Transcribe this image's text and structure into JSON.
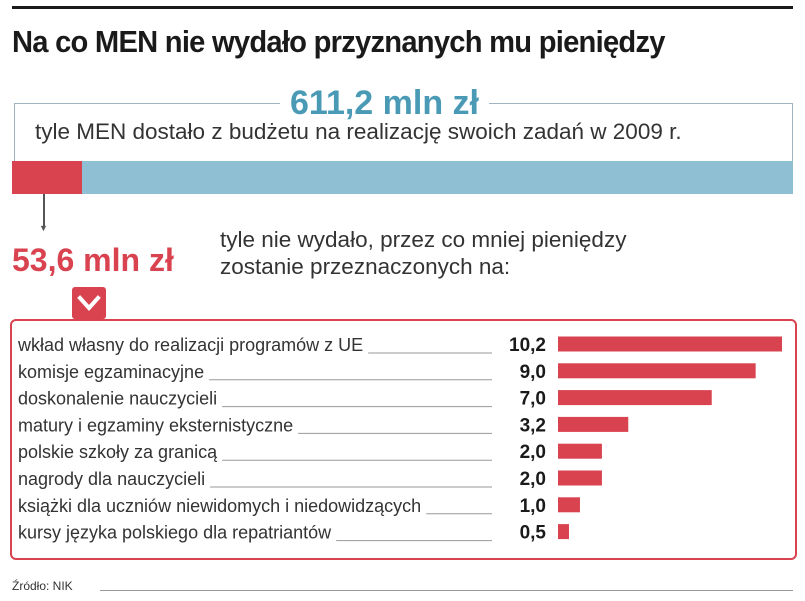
{
  "title": "Na co MEN nie wydało przyznanych mu pieniędzy",
  "budget": {
    "amount": "611,2 mln zł",
    "caption": "tyle MEN dostało z budżetu na realizację swoich zadań w 2009 r."
  },
  "unused": {
    "amount": "53,6 mln zł",
    "caption": "tyle nie wydało, przez co mniej pieniędzy zostanie przeznaczonych na:"
  },
  "colors": {
    "accent_red": "#d94350",
    "accent_blue": "#4a9ab6",
    "bar_blue": "#8ebfd2"
  },
  "chart_data": {
    "type": "bar",
    "orientation": "horizontal",
    "title": "Na co MEN nie wydało przyznanych mu pieniędzy",
    "unit": "mln zł",
    "categories": [
      "wkład własny do realizacji programów z UE",
      "komisje egzaminacyjne",
      "doskonalenie nauczycieli",
      "matury i egzaminy eksternistyczne",
      "polskie szkoły za granicą",
      "nagrody dla nauczycieli",
      "książki dla uczniów niewidomych i niedowidzących",
      "kursy języka polskiego dla repatriantów"
    ],
    "values": [
      10.2,
      9.0,
      7.0,
      3.2,
      2.0,
      2.0,
      1.0,
      0.5
    ],
    "value_labels": [
      "10,2",
      "9,0",
      "7,0",
      "3,2",
      "2,0",
      "2,0",
      "1,0",
      "0,5"
    ],
    "xlim": [
      0,
      10.2
    ]
  },
  "source": "Źródło: NIK"
}
